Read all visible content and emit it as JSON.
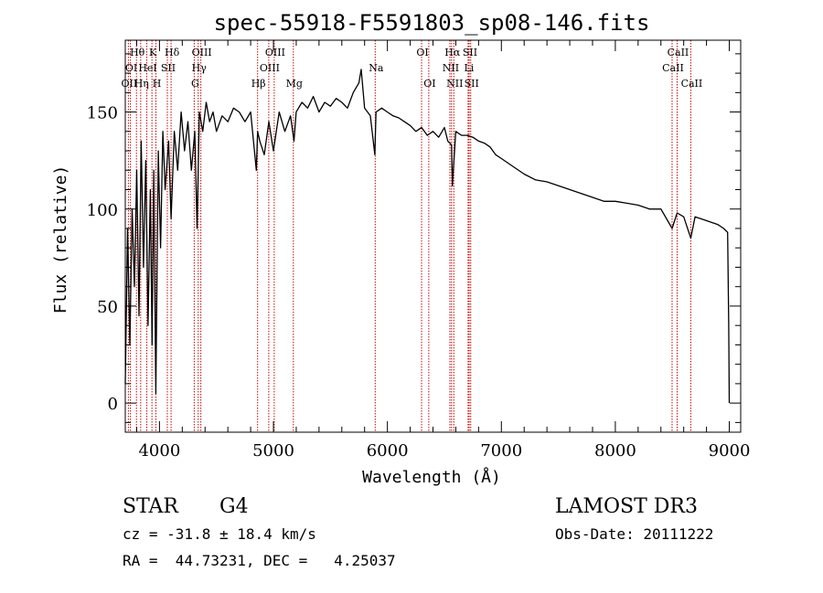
{
  "chart_data": {
    "type": "line",
    "title": "spec-55918-F5591803_sp08-146.fits",
    "xlabel": "Wavelength (Å)",
    "ylabel": "Flux (relative)",
    "xlim": [
      3700,
      9100
    ],
    "ylim": [
      -15,
      187
    ],
    "x_ticks": [
      4000,
      5000,
      6000,
      7000,
      8000,
      9000
    ],
    "y_ticks": [
      0,
      50,
      100,
      150
    ],
    "series": [
      {
        "name": "flux",
        "x": [
          3700,
          3720,
          3740,
          3760,
          3780,
          3800,
          3820,
          3840,
          3860,
          3880,
          3900,
          3920,
          3935,
          3950,
          3968,
          3990,
          4010,
          4030,
          4050,
          4080,
          4102,
          4130,
          4160,
          4190,
          4220,
          4250,
          4280,
          4310,
          4330,
          4350,
          4380,
          4410,
          4440,
          4470,
          4500,
          4550,
          4600,
          4650,
          4700,
          4750,
          4800,
          4850,
          4861,
          4880,
          4920,
          4960,
          5000,
          5050,
          5100,
          5150,
          5180,
          5200,
          5250,
          5300,
          5350,
          5400,
          5450,
          5500,
          5550,
          5600,
          5650,
          5700,
          5750,
          5770,
          5800,
          5850,
          5890,
          5900,
          5950,
          6000,
          6050,
          6100,
          6150,
          6200,
          6250,
          6300,
          6350,
          6400,
          6450,
          6500,
          6530,
          6563,
          6570,
          6600,
          6650,
          6700,
          6750,
          6800,
          6850,
          6900,
          6950,
          7000,
          7100,
          7200,
          7300,
          7400,
          7500,
          7600,
          7700,
          7800,
          7900,
          8000,
          8100,
          8200,
          8300,
          8400,
          8498,
          8542,
          8600,
          8662,
          8700,
          8750,
          8800,
          8850,
          8900,
          8950,
          8985,
          8995,
          9000
        ],
        "values": [
          10,
          90,
          30,
          100,
          60,
          120,
          45,
          135,
          70,
          125,
          40,
          110,
          30,
          120,
          5,
          130,
          80,
          140,
          110,
          135,
          95,
          140,
          120,
          150,
          130,
          145,
          120,
          140,
          90,
          150,
          140,
          155,
          145,
          150,
          140,
          148,
          145,
          152,
          150,
          145,
          150,
          120,
          140,
          135,
          128,
          145,
          130,
          150,
          140,
          148,
          135,
          150,
          155,
          152,
          158,
          150,
          155,
          153,
          157,
          155,
          152,
          160,
          165,
          172,
          152,
          148,
          128,
          150,
          152,
          150,
          148,
          147,
          145,
          143,
          140,
          142,
          138,
          140,
          137,
          142,
          135,
          133,
          112,
          140,
          138,
          138,
          137,
          135,
          134,
          132,
          128,
          126,
          122,
          118,
          115,
          114,
          112,
          110,
          108,
          106,
          104,
          104,
          103,
          102,
          100,
          100,
          90,
          98,
          96,
          85,
          96,
          95,
          94,
          93,
          92,
          90,
          88,
          40,
          0
        ]
      }
    ],
    "line_markers": [
      {
        "label": "Hθ",
        "x": 3798,
        "row": 1
      },
      {
        "label": "OI",
        "x": 3745,
        "row": 2
      },
      {
        "label": "OII",
        "x": 3727,
        "row": 3
      },
      {
        "label": "K",
        "x": 3934,
        "row": 1
      },
      {
        "label": "HeI",
        "x": 3889,
        "row": 2
      },
      {
        "label": "Hη",
        "x": 3835,
        "row": 3
      },
      {
        "label": "SII",
        "x": 4069,
        "row": 2
      },
      {
        "label": "H",
        "x": 3969,
        "row": 3
      },
      {
        "label": "Hδ",
        "x": 4102,
        "row": 1
      },
      {
        "label": "OIII",
        "x": 4363,
        "row": 1
      },
      {
        "label": "Hγ",
        "x": 4340,
        "row": 2
      },
      {
        "label": "G",
        "x": 4305,
        "row": 3
      },
      {
        "label": "Hβ",
        "x": 4861,
        "row": 3
      },
      {
        "label": "OIII",
        "x": 5007,
        "row": 1
      },
      {
        "label": "OIII",
        "x": 4959,
        "row": 2
      },
      {
        "label": "Mg",
        "x": 5175,
        "row": 3
      },
      {
        "label": "Na",
        "x": 5893,
        "row": 2
      },
      {
        "label": "OI",
        "x": 6300,
        "row": 1
      },
      {
        "label": "OI",
        "x": 6363,
        "row": 3
      },
      {
        "label": "Hα",
        "x": 6563,
        "row": 1
      },
      {
        "label": "SII",
        "x": 6717,
        "row": 1
      },
      {
        "label": "NII",
        "x": 6548,
        "row": 2
      },
      {
        "label": "Li",
        "x": 6708,
        "row": 2
      },
      {
        "label": "NII",
        "x": 6583,
        "row": 3
      },
      {
        "label": "SII",
        "x": 6731,
        "row": 3
      },
      {
        "label": "CaII",
        "x": 8542,
        "row": 1
      },
      {
        "label": "CaII",
        "x": 8498,
        "row": 2
      },
      {
        "label": "CaII",
        "x": 8662,
        "row": 3
      }
    ]
  },
  "info": {
    "object_class": "STAR",
    "subclass": "G4",
    "survey": "LAMOST DR3",
    "cz_line": "cz = -31.8 ± 18.4 km/s",
    "obs_date_line": "Obs-Date: 20111222",
    "radec_line": "RA =  44.73231, DEC =   4.25037"
  },
  "colors": {
    "marker_line": "#cc0000",
    "spectrum": "#000000",
    "axes": "#000000"
  }
}
